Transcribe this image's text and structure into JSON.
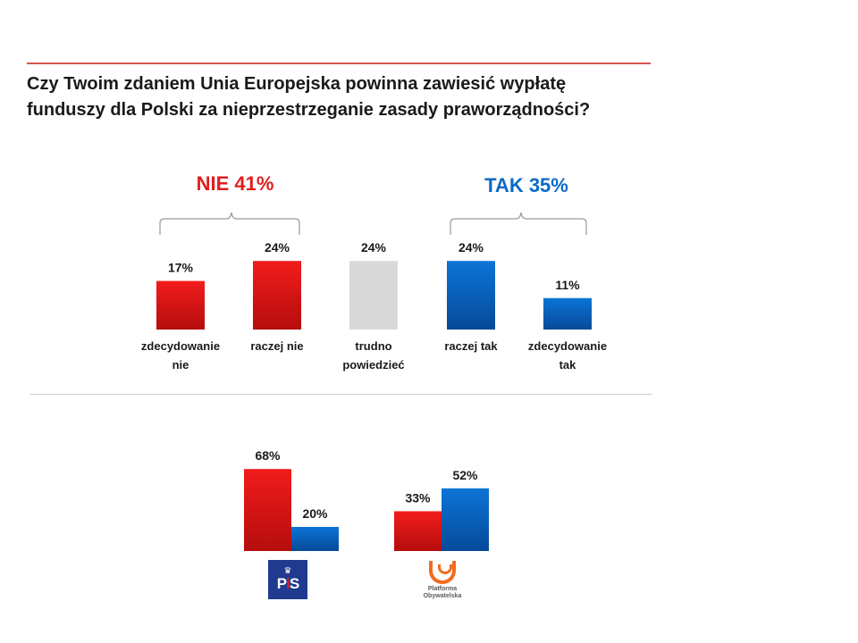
{
  "question": {
    "line1": "Czy Twoim zdaniem Unia Europejska powinna zawiesić wypłatę",
    "line2": "funduszy dla Polski za nieprzestrzeganie zasady praworządności?"
  },
  "groups": {
    "nie": {
      "label": "NIE 41%",
      "color": "#e01e1e"
    },
    "tak": {
      "label": "TAK 35%",
      "color": "#0a6ac7"
    }
  },
  "colors": {
    "red": "#e01e1e",
    "blue": "#0a6ac7",
    "grey": "#d9d9d9"
  },
  "chart_data": [
    {
      "type": "bar",
      "title": "Czy Twoim zdaniem Unia Europejska powinna zawiesić wypłatę funduszy dla Polski za nieprzestrzeganie zasady praworządności?",
      "categories": [
        {
          "line1": "zdecydowanie",
          "line2": "nie"
        },
        {
          "line1": "raczej nie",
          "line2": ""
        },
        {
          "line1": "trudno",
          "line2": "powiedzieć"
        },
        {
          "line1": "raczej tak",
          "line2": ""
        },
        {
          "line1": "zdecydowanie",
          "line2": "tak"
        }
      ],
      "values": [
        17,
        24,
        24,
        24,
        11
      ],
      "value_labels": [
        "17%",
        "24%",
        "24%",
        "24%",
        "11%"
      ],
      "bar_colors": [
        "red",
        "red",
        "grey",
        "blue",
        "blue"
      ],
      "ylim": [
        0,
        30
      ]
    },
    {
      "type": "bar",
      "title": "",
      "categories": [
        "PiS",
        "Platforma Obywatelska"
      ],
      "series": [
        {
          "name": "NIE",
          "color": "red",
          "values": [
            68,
            33
          ],
          "value_labels": [
            "68%",
            "33%"
          ]
        },
        {
          "name": "TAK",
          "color": "blue",
          "values": [
            20,
            52
          ],
          "value_labels": [
            "20%",
            "52%"
          ]
        }
      ],
      "ylim": [
        0,
        70
      ]
    }
  ],
  "logos": {
    "pis": {
      "text_p": "P",
      "text_i": "i",
      "text_s": "S"
    },
    "po": {
      "line1": "Platforma",
      "line2": "Obywatelska"
    }
  }
}
